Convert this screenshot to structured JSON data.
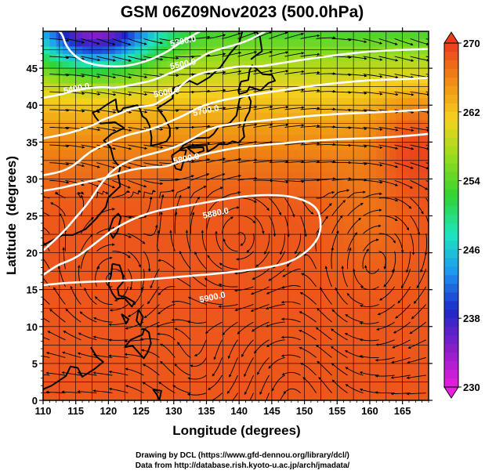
{
  "chart_data": {
    "type": "heatmap",
    "title": "GSM 06Z09Nov2023 (500.0hPa)",
    "xlabel": "Longitude (degrees)",
    "ylabel": "Latitude  (degrees)",
    "xlim": [
      110,
      169
    ],
    "ylim": [
      0,
      50
    ],
    "x_ticks": [
      110,
      115,
      120,
      125,
      130,
      135,
      140,
      145,
      150,
      155,
      160,
      165
    ],
    "y_ticks": [
      0,
      5,
      10,
      15,
      20,
      25,
      30,
      35,
      40,
      45
    ],
    "grid": true,
    "colorbar": {
      "min": 230,
      "max": 270,
      "ticks": [
        "270",
        "262",
        "254",
        "246",
        "238",
        "230"
      ],
      "colors": [
        "#e81ee0",
        "#8a1ec8",
        "#1e28c8",
        "#1e96f0",
        "#1ee6be",
        "#32d232",
        "#96dc1e",
        "#f5d21e",
        "#f08c14",
        "#eb3c1e"
      ]
    },
    "contours": [
      {
        "label": "5300.0",
        "points": [
          [
            112.5,
            50
          ],
          [
            113,
            49.5
          ],
          [
            113.5,
            48
          ],
          [
            115,
            46.5
          ],
          [
            117,
            45.6
          ],
          [
            120,
            45.2
          ],
          [
            123,
            45.3
          ],
          [
            126,
            46
          ],
          [
            128,
            46.8
          ],
          [
            129.5,
            47.5
          ],
          [
            131,
            48.5
          ],
          [
            133,
            49.5
          ],
          [
            134,
            50
          ]
        ]
      },
      {
        "label": "5400.0",
        "points": [
          [
            110,
            41
          ],
          [
            112.5,
            41.4
          ],
          [
            114.5,
            41.9
          ],
          [
            116,
            42.2
          ],
          [
            119,
            42.5
          ],
          [
            121,
            42.3
          ],
          [
            124,
            42.8
          ],
          [
            127,
            43.4
          ],
          [
            129,
            44.2
          ],
          [
            131,
            44.9
          ],
          [
            133,
            45.8
          ],
          [
            135,
            47
          ],
          [
            137,
            47.6
          ],
          [
            140,
            48.3
          ],
          [
            142,
            49
          ],
          [
            144,
            50
          ]
        ]
      },
      {
        "label": "5500.0",
        "points": [
          [
            110,
            35.5
          ],
          [
            113,
            36
          ],
          [
            115.5,
            36.6
          ],
          [
            118,
            37.4
          ],
          [
            119,
            38
          ],
          [
            121,
            38.6
          ],
          [
            124,
            39.7
          ],
          [
            127,
            40
          ],
          [
            128,
            40.6
          ],
          [
            130,
            41.6
          ],
          [
            131,
            42.6
          ],
          [
            133,
            44
          ],
          [
            135,
            44.5
          ],
          [
            137,
            44.8
          ],
          [
            140,
            45.3
          ],
          [
            143,
            45.2
          ],
          [
            145,
            45.5
          ],
          [
            150,
            46.2
          ],
          [
            155,
            46.8
          ],
          [
            160,
            47.3
          ],
          [
            165,
            47.5
          ],
          [
            169,
            47.6
          ]
        ]
      },
      {
        "label": "5600.0",
        "points": [
          [
            110,
            30.5
          ],
          [
            113,
            31
          ],
          [
            115,
            32
          ],
          [
            117,
            33.6
          ],
          [
            119,
            34.5
          ],
          [
            121,
            35.3
          ],
          [
            123,
            36
          ],
          [
            126,
            36.6
          ],
          [
            128,
            37.2
          ],
          [
            130,
            38
          ],
          [
            132,
            38.8
          ],
          [
            134,
            39.8
          ],
          [
            137,
            40.6
          ],
          [
            140,
            41.1
          ],
          [
            145,
            41.8
          ],
          [
            150,
            42.5
          ],
          [
            155,
            43
          ],
          [
            160,
            43.4
          ],
          [
            165,
            43.5
          ],
          [
            169,
            43.7
          ]
        ]
      },
      {
        "label": "5700.0",
        "points": [
          [
            110,
            20.3
          ],
          [
            113,
            22.7
          ],
          [
            115,
            24.8
          ],
          [
            117,
            26.8
          ],
          [
            119,
            29.6
          ],
          [
            121,
            31.5
          ],
          [
            124,
            32.8
          ],
          [
            127,
            33.5
          ],
          [
            130,
            34.2
          ],
          [
            133,
            35.5
          ],
          [
            135,
            36.6
          ],
          [
            137,
            37.2
          ],
          [
            140,
            37.6
          ],
          [
            145,
            38
          ],
          [
            150,
            38.5
          ],
          [
            155,
            38.8
          ],
          [
            160,
            39
          ],
          [
            165,
            39.2
          ],
          [
            169,
            39.4
          ]
        ]
      },
      {
        "label": "5800.0",
        "points": [
          [
            110,
            28.4
          ],
          [
            113,
            28.8
          ],
          [
            116,
            29.5
          ],
          [
            119,
            30
          ],
          [
            121,
            30.6
          ],
          [
            124,
            31.4
          ],
          [
            127,
            31.6
          ],
          [
            129,
            31.7
          ],
          [
            130,
            32.1
          ],
          [
            132,
            32.6
          ],
          [
            134,
            33.2
          ],
          [
            137,
            33.8
          ],
          [
            140,
            34.3
          ],
          [
            145,
            34.7
          ],
          [
            150,
            35.1
          ],
          [
            155,
            35.4
          ],
          [
            160,
            35.5
          ],
          [
            165,
            35.8
          ],
          [
            169,
            36.1
          ]
        ]
      },
      {
        "label": "5880.0",
        "points": [
          [
            110,
            17
          ],
          [
            112,
            18.2
          ],
          [
            113,
            18.6
          ],
          [
            115,
            19.3
          ],
          [
            117,
            20.6
          ],
          [
            119,
            22
          ],
          [
            121,
            23.3
          ],
          [
            124,
            24.7
          ],
          [
            127,
            25.6
          ],
          [
            130,
            26.1
          ],
          [
            133,
            26.5
          ],
          [
            136,
            27
          ],
          [
            140,
            27.6
          ],
          [
            145,
            27.9
          ],
          [
            149,
            27.5
          ],
          [
            152,
            26.2
          ],
          [
            152.6,
            24
          ],
          [
            152.2,
            22
          ],
          [
            150.5,
            20.2
          ],
          [
            148,
            18.8
          ],
          [
            145,
            18.1
          ],
          [
            141,
            17.6
          ],
          [
            137,
            17.2
          ],
          [
            133,
            16.9
          ],
          [
            129,
            16.6
          ],
          [
            125,
            16.3
          ],
          [
            121,
            16.2
          ],
          [
            118,
            16.1
          ],
          [
            115,
            16
          ],
          [
            112,
            15.8
          ],
          [
            110,
            15.6
          ]
        ]
      }
    ],
    "contour_label_positions": [
      [
        131.5,
        48.3
      ],
      [
        115.2,
        41.9
      ],
      [
        131.5,
        45.2
      ],
      [
        129,
        41.4
      ],
      [
        135,
        38.9
      ],
      [
        132,
        32.4
      ],
      [
        136.5,
        25
      ],
      [
        136,
        13.6
      ]
    ],
    "wind_field": "anticyclone centered near 140E 21.5N; strong westerlies north of 30N",
    "vortices": [
      [
        140,
        21.5,
        0.9
      ],
      [
        159,
        13.5,
        0.6
      ],
      [
        120.5,
        14,
        0.5
      ],
      [
        134,
        3,
        0.5
      ],
      [
        148,
        4,
        -0.5
      ],
      [
        162,
        20.5,
        0.6
      ]
    ],
    "coastline_note": "East Asia coastlines (China, Korea, Japan, Taiwan, Philippines)"
  },
  "credits": {
    "line1": "Drawing by DCL (https://www.gfd-dennou.org/library/dcl/)",
    "line2": "Data from http://database.rish.kyoto-u.ac.jp/arch/jmadata/"
  }
}
